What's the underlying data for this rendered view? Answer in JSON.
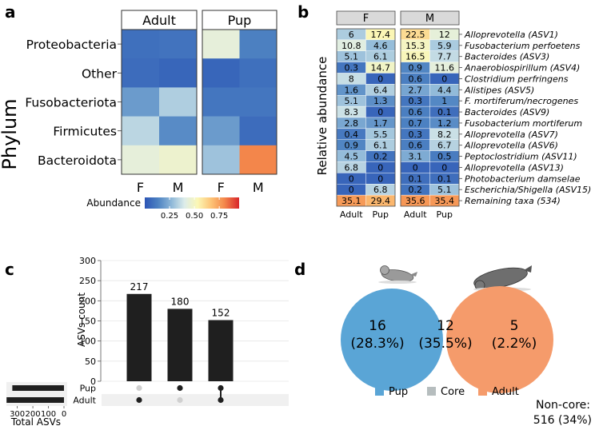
{
  "colors": {
    "strip_bg": "#d9d9d9",
    "bar": "#1f1f1f",
    "dot_off": "#d0d0d0",
    "pup_circle": "#5aa5d6",
    "core_circle": "#b6bdbe",
    "adult_circle": "#f59b6b",
    "scale": [
      "#2c55b5",
      "#4d82c2",
      "#8db7d8",
      "#dcecea",
      "#fbf7b6",
      "#fdc578",
      "#f48a4c",
      "#d8262a"
    ]
  },
  "chart_data": [
    {
      "panel": "a",
      "type": "heatmap",
      "ylabel": "Phylum",
      "facets": [
        "Adult",
        "Pup"
      ],
      "columns": [
        "F",
        "M"
      ],
      "rows": [
        "Proteobacteria",
        "Other",
        "Fusobacteriota",
        "Firmicutes",
        "Bacteroidota"
      ],
      "values": {
        "Adult": [
          [
            0.08,
            0.09
          ],
          [
            0.07,
            0.05
          ],
          [
            0.2,
            0.33
          ],
          [
            0.35,
            0.16
          ],
          [
            0.45,
            0.48
          ]
        ],
        "Pup": [
          [
            0.45,
            0.13
          ],
          [
            0.05,
            0.08
          ],
          [
            0.1,
            0.1
          ],
          [
            0.2,
            0.07
          ],
          [
            0.3,
            0.82
          ]
        ]
      },
      "legend": {
        "title": "Abundance",
        "ticks": [
          "0.25",
          "0.50",
          "0.75"
        ],
        "tick_values": [
          0.25,
          0.5,
          0.75
        ],
        "range": [
          0.0,
          0.95
        ]
      }
    },
    {
      "panel": "b",
      "type": "heatmap",
      "ylabel": "Relative abundance",
      "facets": [
        "F",
        "M"
      ],
      "columns": [
        "Adult",
        "Pup"
      ],
      "rows": [
        "Alloprevotella (ASV1)",
        "Fusobacterium perfoetens",
        "Bacteroides (ASV3)",
        "Anaerobiospirillum (ASV4)",
        "Clostridium perfringens",
        "Alistipes (ASV5)",
        "F. mortiferum/necrogenes",
        "Bacteroides (ASV9)",
        "Fusobacterium mortiferum",
        "Alloprevotella (ASV7)",
        "Alloprevotella (ASV6)",
        "Peptoclostridium (ASV11)",
        "Alloprevotella (ASV13)",
        "Photobacterium damselae",
        "Escherichia/Shigella (ASV15)",
        "Remaining taxa (534)"
      ],
      "values": {
        "F": [
          [
            "6",
            "17.4"
          ],
          [
            "10.8",
            "4.6"
          ],
          [
            "5.1",
            "6.1"
          ],
          [
            "0.3",
            "14.7"
          ],
          [
            "8",
            "0"
          ],
          [
            "1.6",
            "6.4"
          ],
          [
            "5.1",
            "1.3"
          ],
          [
            "8.3",
            "0"
          ],
          [
            "2.8",
            "1.7"
          ],
          [
            "0.4",
            "5.5"
          ],
          [
            "0.9",
            "6.1"
          ],
          [
            "4.5",
            "0.2"
          ],
          [
            "6.8",
            "0"
          ],
          [
            "0",
            "0"
          ],
          [
            "0",
            "6.8"
          ],
          [
            "35.1",
            "29.4"
          ]
        ],
        "M": [
          [
            "22.5",
            "12"
          ],
          [
            "15.3",
            "5.9"
          ],
          [
            "16.5",
            "7.7"
          ],
          [
            "0.9",
            "11.6"
          ],
          [
            "0.6",
            "0"
          ],
          [
            "2.7",
            "4.4"
          ],
          [
            "0.3",
            "1"
          ],
          [
            "0.6",
            "0.1"
          ],
          [
            "0.7",
            "1.2"
          ],
          [
            "0.3",
            "8.2"
          ],
          [
            "0.6",
            "6.7"
          ],
          [
            "3.1",
            "0.5"
          ],
          [
            "0",
            "0"
          ],
          [
            "0.1",
            "0.1"
          ],
          [
            "0.2",
            "5.1"
          ],
          [
            "35.6",
            "35.4"
          ]
        ]
      }
    },
    {
      "panel": "c",
      "type": "bar",
      "subtype": "upset",
      "ylabel": "ASVs count",
      "yticks": [
        0,
        50,
        100,
        150,
        200,
        250,
        300
      ],
      "ylim": [
        0,
        300
      ],
      "values": [
        217,
        180,
        152
      ],
      "sets": [
        "Pup",
        "Adult"
      ],
      "membership": [
        [
          false,
          true
        ],
        [
          true,
          false
        ],
        [
          true,
          true
        ]
      ],
      "set_sizes_label": "Total ASVs",
      "set_size_ticks": [
        "300",
        "200",
        "100",
        "0"
      ],
      "set_size_tick_values": [
        300,
        200,
        100,
        0
      ],
      "set_sizes": {
        "Pup": 332,
        "Adult": 369
      }
    },
    {
      "panel": "d",
      "type": "venn",
      "sets": [
        {
          "name": "Pup",
          "count": "16",
          "percent": "(28.3%)"
        },
        {
          "name": "Core",
          "count": "12",
          "percent": "(35.5%)"
        },
        {
          "name": "Adult",
          "count": "5",
          "percent": "(2.2%)"
        }
      ],
      "legend": [
        "Pup",
        "Core",
        "Adult"
      ],
      "noncore_label": "Non-core:",
      "noncore_value": "516 (34%)"
    }
  ],
  "panels": {
    "a": "a",
    "b": "b",
    "c": "c",
    "d": "d"
  }
}
